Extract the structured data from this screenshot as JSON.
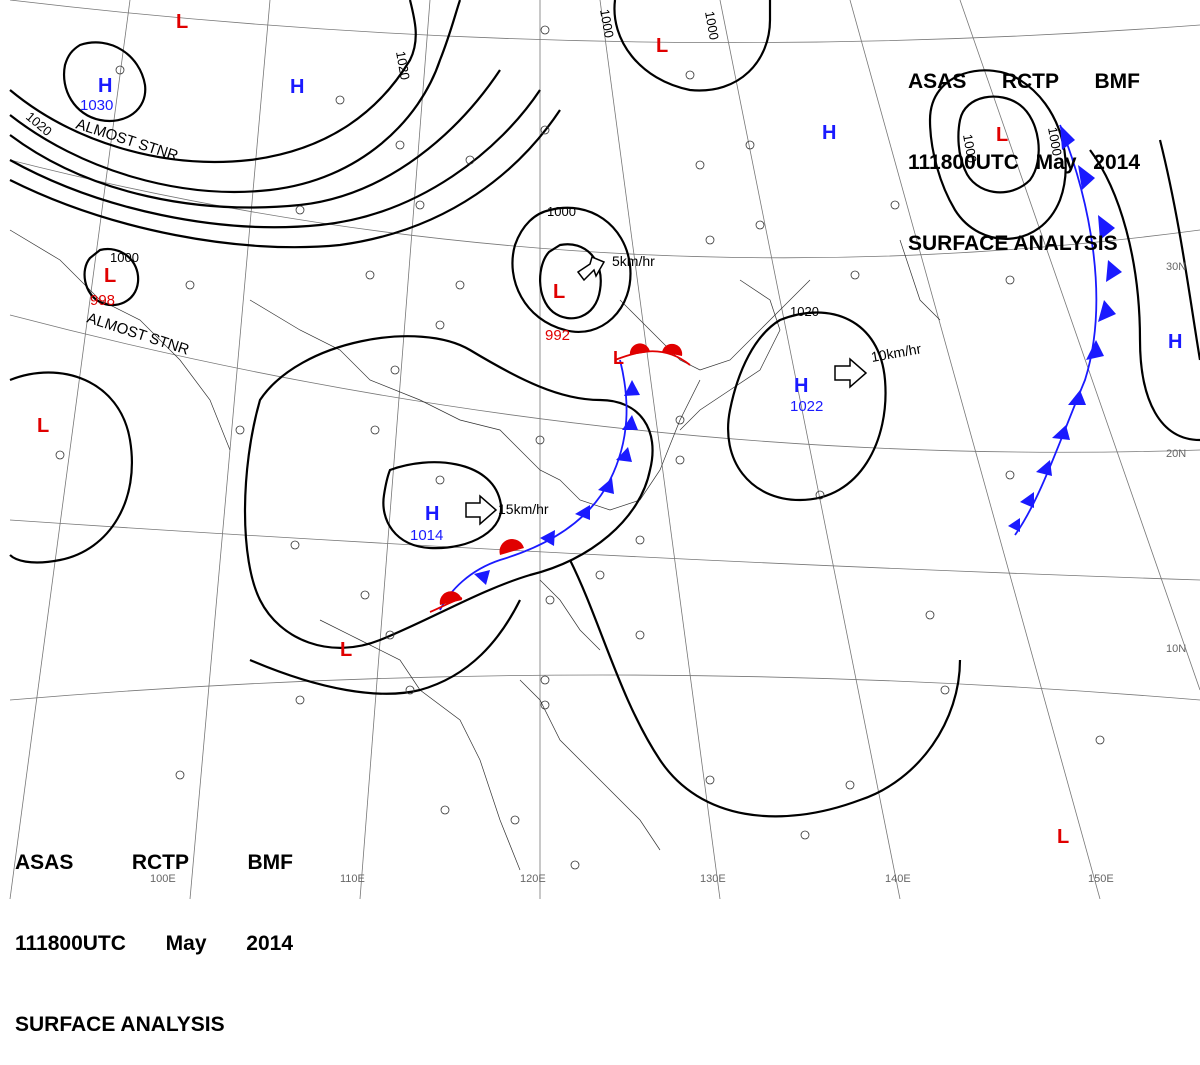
{
  "header": {
    "line1": [
      "ASAS",
      "RCTP",
      "BMF"
    ],
    "line2": [
      "111800UTC",
      "May",
      "2014"
    ],
    "line3": "SURFACE ANALYSIS"
  },
  "colors": {
    "high": "#1a1aff",
    "low": "#e00000",
    "isobar": "#000000",
    "grid": "#888888"
  },
  "latitudes": [
    "30N",
    "20N",
    "10N"
  ],
  "longitudes": [
    "100E",
    "110E",
    "120E",
    "130E",
    "140E",
    "150E"
  ],
  "pressure_centers": [
    {
      "type": "H",
      "value": "1030",
      "note": "ALMOST STNR"
    },
    {
      "type": "H",
      "value": ""
    },
    {
      "type": "L",
      "value": ""
    },
    {
      "type": "L",
      "value": ""
    },
    {
      "type": "L",
      "value": "998",
      "note": "ALMOST STNR"
    },
    {
      "type": "L",
      "value": "992"
    },
    {
      "type": "L",
      "value": ""
    },
    {
      "type": "H",
      "value": ""
    },
    {
      "type": "L",
      "value": ""
    },
    {
      "type": "H",
      "value": "1022"
    },
    {
      "type": "H",
      "value": "1014"
    },
    {
      "type": "L",
      "value": ""
    },
    {
      "type": "L",
      "value": ""
    },
    {
      "type": "L",
      "value": ""
    },
    {
      "type": "H",
      "value": ""
    }
  ],
  "isobar_labels": [
    "1020",
    "1020",
    "1000",
    "1000",
    "1000",
    "1000",
    "1000",
    "1020",
    "1000"
  ],
  "motion": [
    {
      "speed": "5km/hr"
    },
    {
      "speed": "10km/hr"
    },
    {
      "speed": "15km/hr"
    }
  ]
}
